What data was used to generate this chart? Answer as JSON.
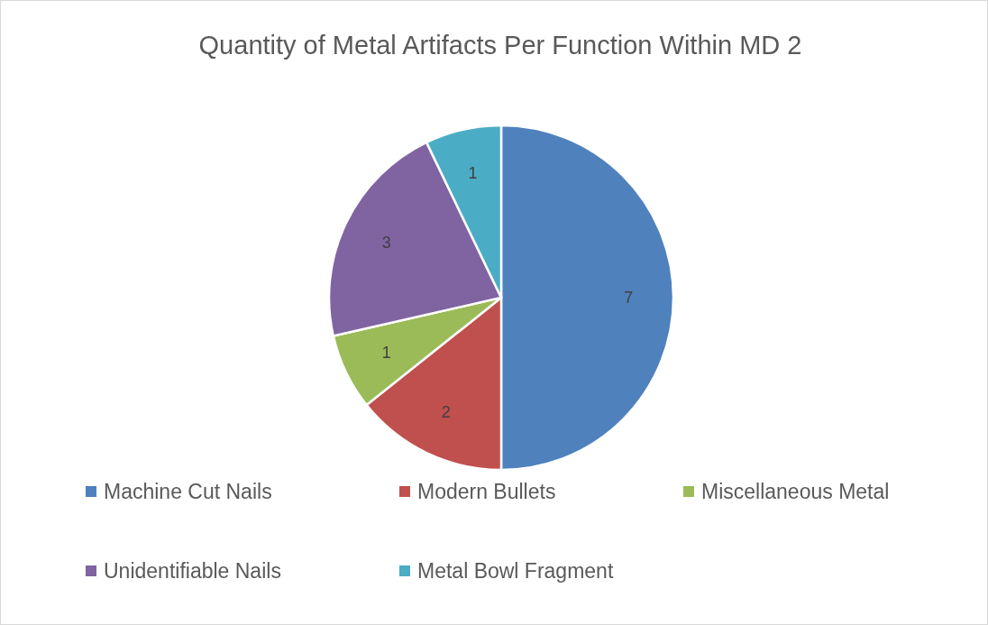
{
  "chart_data": {
    "type": "pie",
    "title": "Quantity of Metal Artifacts Per Function Within MD 2",
    "categories": [
      "Machine Cut Nails",
      "Modern Bullets",
      "Miscellaneous Metal",
      "Unidentifiable Nails",
      "Metal Bowl Fragment"
    ],
    "values": [
      7,
      2,
      1,
      3,
      1
    ],
    "colors": [
      "#4f81bd",
      "#c0504d",
      "#9bbb59",
      "#8064a2",
      "#4bacc6"
    ],
    "data_labels": true,
    "legend": "bottom"
  }
}
